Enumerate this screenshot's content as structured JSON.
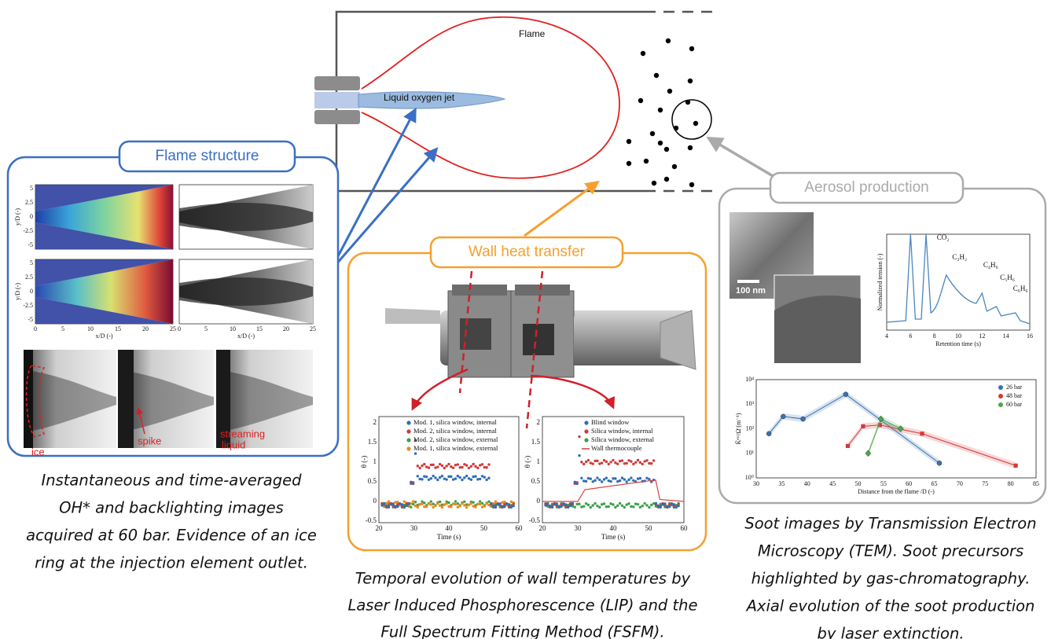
{
  "schematic": {
    "flame_label": "Flame",
    "jet_label": "Liquid oxygen jet"
  },
  "flame_structure": {
    "title": "Flame structure",
    "y_label": "y/D (-)",
    "x_label": "x/D (-)",
    "y_ticks": [
      "5",
      "2.5",
      "0",
      "-2.5",
      "-5"
    ],
    "x_ticks": [
      "0",
      "5",
      "10",
      "15",
      "20",
      "25"
    ],
    "annotations": {
      "ice": "ice",
      "spike": "spike",
      "streaming_liquid": [
        "streaming",
        "liquid"
      ]
    },
    "caption": [
      "Instantaneous and time-averaged",
      "OH* and backlighting images",
      "acquired at 60 bar. Evidence of an ice",
      "ring at the injection element outlet."
    ]
  },
  "wall_heat_transfer": {
    "title": "Wall heat transfer",
    "plots": [
      {
        "legend": [
          "Mod. 1, silica window, internal",
          "Mod. 2, silica window, internal",
          "Mod. 2, silica window, external",
          "Mod. 1, silica window, external"
        ],
        "y_label": "θ (-)",
        "x_label": "Time (s)",
        "y_ticks": [
          "2",
          "1.5",
          "1",
          "0.5",
          "0",
          "-0.5"
        ],
        "x_ticks": [
          "20",
          "30",
          "40",
          "50",
          "60"
        ]
      },
      {
        "legend": [
          "Blind window",
          "Silica window, internal",
          "Silica window, external",
          "Wall thermocouple"
        ],
        "y_label": "θ (-)",
        "x_label": "Time (s)",
        "y_ticks": [
          "2",
          "1.5",
          "1",
          "0.5",
          "0",
          "-0.5"
        ],
        "x_ticks": [
          "20",
          "30",
          "40",
          "50",
          "60"
        ]
      }
    ],
    "caption": [
      "Temporal evolution of wall temperatures by",
      "Laser Induced Phosphorescence (LIP) and the",
      "Full Spectrum Fitting Method (FSFM)."
    ]
  },
  "aerosol_production": {
    "title": "Aerosol production",
    "scale_bar": "100 nm",
    "chromatogram": {
      "y_label": "Normalized tension (-)",
      "x_label": "Retention time (s)",
      "x_ticks": [
        "4",
        "6",
        "8",
        "10",
        "12",
        "14",
        "16"
      ],
      "peaks": [
        "CO₂",
        "C₂H₂",
        "C₄H₆",
        "C₅H₆",
        "C₆H₆"
      ]
    },
    "extinction": {
      "y_label": "K̄ᵉˣᵗ/Ω̄ (m⁻¹)",
      "x_label": "Distance from the flame /D (-)",
      "x_ticks": [
        "30",
        "35",
        "40",
        "45",
        "50",
        "55",
        "60",
        "65",
        "70",
        "75",
        "80",
        "85"
      ],
      "y_ticks": [
        "10⁰",
        "10¹",
        "10²",
        "10³",
        "10⁴"
      ],
      "legend": [
        "26 bar",
        "48 bar",
        "60 bar"
      ]
    },
    "caption": [
      "Soot images by Transmission Electron",
      "Microscopy (TEM). Soot precursors",
      "highlighted by gas-chromatography.",
      "Axial evolution of the soot production",
      "by laser extinction."
    ]
  }
}
